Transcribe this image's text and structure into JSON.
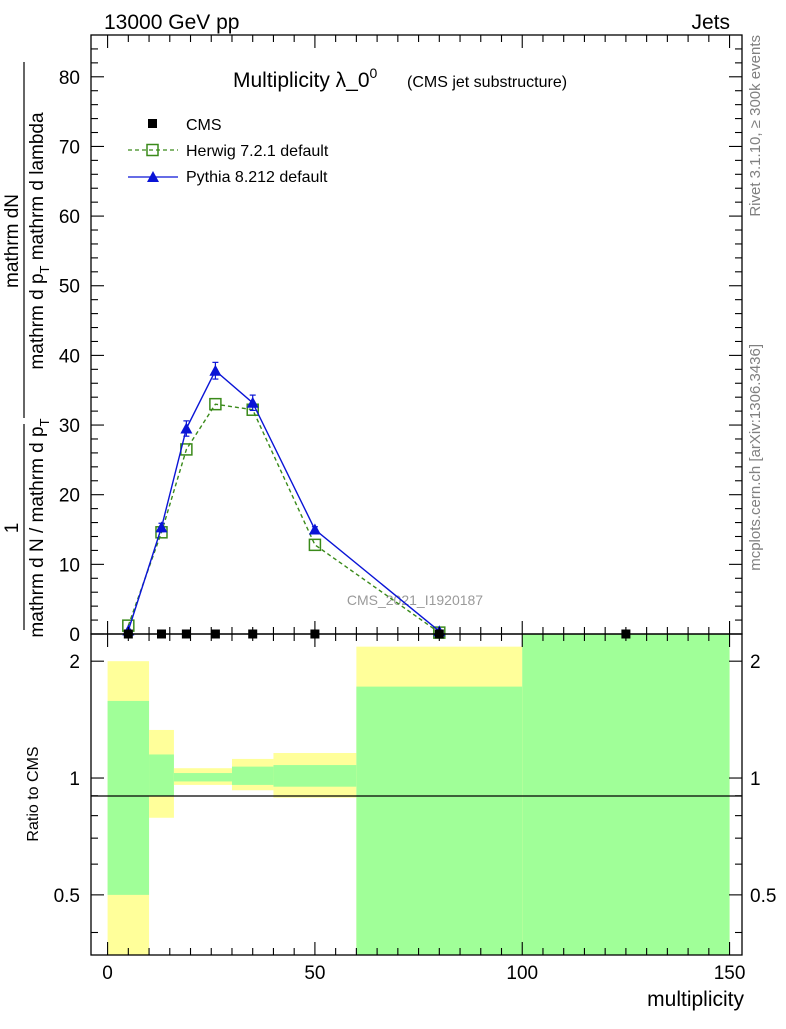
{
  "header": {
    "left": "13000 GeV pp",
    "right": "Jets"
  },
  "title": {
    "main_prefix": "Multiplicity λ_0",
    "main_sup": "0",
    "sub": "(CMS jet substructure)"
  },
  "side_labels": {
    "rivet": "Rivet 3.1.10, ≥ 300k events",
    "mcplots": "mcplots.cern.ch [arXiv:1306.3436]"
  },
  "watermark": "CMS_2021_I1920187",
  "legend": [
    {
      "key": "cms",
      "label": "CMS"
    },
    {
      "key": "herwig",
      "label": "Herwig 7.2.1 default"
    },
    {
      "key": "pythia",
      "label": "Pythia 8.212 default"
    }
  ],
  "ylabel_main": {
    "numerator": "mathrm dN",
    "denominator": "mathrm d p",
    "denominator_sub": "T",
    "denominator_rest": " mathrm d lambda",
    "prefactor_num": "1",
    "prefactor_den_a": "mathrm d N / mathrm d p",
    "prefactor_den_sub": "T"
  },
  "ylabel_ratio": "Ratio to CMS",
  "xlabel": "multiplicity",
  "colors": {
    "herwig": "#3a8a1a",
    "pythia": "#0a14d6",
    "band_inner": "#a0ff98",
    "band_outer": "#ffff9a"
  },
  "chart_data": {
    "type": "line",
    "xlim": [
      -4,
      153
    ],
    "ylim_main": [
      0,
      86
    ],
    "ylim_ratio": [
      0.35,
      2.35
    ],
    "x_ticks": [
      "0",
      "50",
      "100",
      "150"
    ],
    "y_ticks_main": [
      "0",
      "10",
      "20",
      "30",
      "40",
      "50",
      "60",
      "70",
      "80"
    ],
    "y_ticks_ratio": [
      "0.5",
      "1",
      "2"
    ],
    "cms": {
      "x": [
        5,
        13,
        19,
        26,
        35,
        50,
        80,
        125
      ],
      "y": [
        0,
        0,
        0,
        0,
        0,
        0,
        0,
        0
      ]
    },
    "series": [
      {
        "name": "Herwig 7.2.1 default",
        "x": [
          5,
          13,
          19,
          26,
          35,
          50,
          80
        ],
        "y": [
          1.2,
          14.6,
          26.5,
          33,
          32.2,
          12.8,
          0.2
        ]
      },
      {
        "name": "Pythia 8.212 default",
        "x": [
          5,
          13,
          19,
          26,
          35,
          50,
          80
        ],
        "y": [
          0.5,
          15.3,
          29.5,
          37.8,
          33.2,
          15,
          0.4
        ],
        "yerr": [
          0,
          0.6,
          1.1,
          1.2,
          1.1,
          0.4,
          0
        ]
      }
    ],
    "ratio_bands": [
      {
        "x0": 0,
        "x1": 10,
        "outer": [
          0.35,
          2.0
        ],
        "inner": [
          0.5,
          1.58
        ]
      },
      {
        "x0": 10,
        "x1": 16,
        "outer": [
          0.79,
          1.33
        ],
        "inner": [
          0.9,
          1.15
        ]
      },
      {
        "x0": 16,
        "x1": 30,
        "outer": [
          0.96,
          1.06
        ],
        "inner": [
          0.98,
          1.03
        ]
      },
      {
        "x0": 30,
        "x1": 40,
        "outer": [
          0.93,
          1.12
        ],
        "inner": [
          0.96,
          1.07
        ]
      },
      {
        "x0": 40,
        "x1": 60,
        "outer": [
          0.89,
          1.16
        ],
        "inner": [
          0.95,
          1.08
        ]
      },
      {
        "x0": 60,
        "x1": 100,
        "outer": [
          0.35,
          2.18
        ],
        "inner": [
          0.35,
          1.72
        ]
      },
      {
        "x0": 100,
        "x1": 150,
        "outer": [
          0.35,
          2.35
        ],
        "inner": [
          0.35,
          2.35
        ]
      }
    ]
  }
}
